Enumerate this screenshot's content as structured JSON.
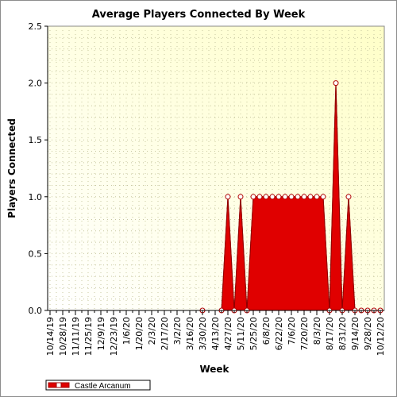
{
  "chart_data": {
    "type": "area",
    "title": "Average Players Connected By Week",
    "xlabel": "Week",
    "ylabel": "Players Connected",
    "ylim": [
      0,
      2.5
    ],
    "yticks": [
      "0.0",
      "0.5",
      "1.0",
      "1.5",
      "2.0",
      "2.5"
    ],
    "grid": true,
    "legend_position": "bottom-left",
    "x": [
      "10/14/19",
      "10/21/19",
      "10/28/19",
      "11/4/19",
      "11/11/19",
      "11/18/19",
      "11/25/19",
      "12/2/19",
      "12/9/19",
      "12/16/19",
      "12/23/19",
      "12/30/19",
      "1/6/20",
      "1/13/20",
      "1/20/20",
      "1/27/20",
      "2/3/20",
      "2/10/20",
      "2/17/20",
      "2/24/20",
      "3/2/20",
      "3/9/20",
      "3/16/20",
      "3/23/20",
      "3/30/20",
      "4/6/20",
      "4/13/20",
      "4/20/20",
      "4/27/20",
      "5/4/20",
      "5/11/20",
      "5/18/20",
      "5/25/20",
      "6/1/20",
      "6/8/20",
      "6/15/20",
      "6/22/20",
      "6/29/20",
      "7/6/20",
      "7/13/20",
      "7/20/20",
      "7/27/20",
      "8/3/20",
      "8/10/20",
      "8/17/20",
      "8/24/20",
      "8/31/20",
      "9/7/20",
      "9/14/20",
      "9/21/20",
      "9/28/20",
      "10/5/20",
      "10/12/20"
    ],
    "x_tick_labels": [
      "10/14/19",
      "10/28/19",
      "11/11/19",
      "11/25/19",
      "12/9/19",
      "12/23/19",
      "1/6/20",
      "1/20/20",
      "2/3/20",
      "2/17/20",
      "3/2/20",
      "3/16/20",
      "3/30/20",
      "4/13/20",
      "4/27/20",
      "5/11/20",
      "5/25/20",
      "6/8/20",
      "6/22/20",
      "7/6/20",
      "7/20/20",
      "8/3/20",
      "8/17/20",
      "8/31/20",
      "9/14/20",
      "9/28/20",
      "10/12/20"
    ],
    "series": [
      {
        "name": "Castle Arcanum",
        "color": "#e00000",
        "values": [
          null,
          null,
          null,
          null,
          null,
          null,
          null,
          null,
          null,
          null,
          null,
          null,
          null,
          null,
          null,
          null,
          null,
          null,
          null,
          null,
          null,
          null,
          null,
          null,
          0,
          null,
          null,
          0,
          1,
          0,
          1,
          0,
          1,
          1,
          1,
          1,
          1,
          1,
          1,
          1,
          1,
          1,
          1,
          1,
          0,
          2,
          0,
          1,
          0,
          0,
          0,
          0,
          0
        ]
      }
    ]
  }
}
